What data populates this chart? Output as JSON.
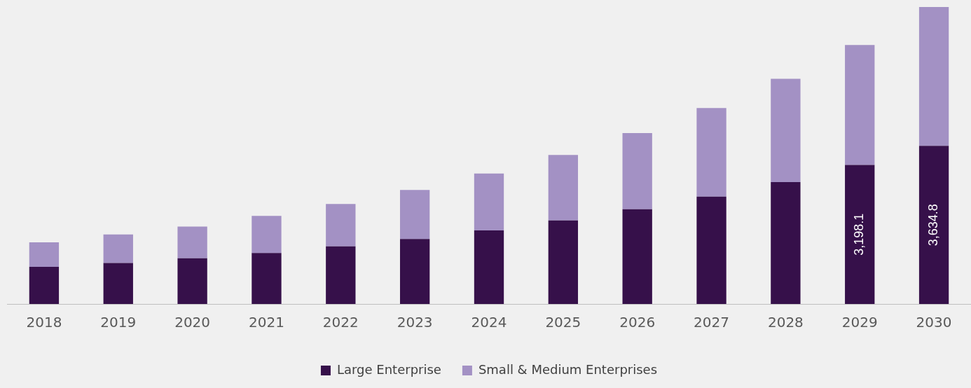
{
  "chart_data": {
    "type": "bar",
    "stacked": true,
    "legend": "bottom",
    "grid": false,
    "categories": [
      "2018",
      "2019",
      "2020",
      "2021",
      "2022",
      "2023",
      "2024",
      "2025",
      "2026",
      "2027",
      "2028",
      "2029",
      "2030"
    ],
    "ylim": [
      0,
      6830
    ],
    "series": [
      {
        "name": "Large Enterprise",
        "color": "#36104a",
        "values": [
          853,
          944,
          1051,
          1173,
          1325,
          1493,
          1690,
          1919,
          2178,
          2467,
          2802,
          3198.1,
          3634.8
        ],
        "value_labels": [
          null,
          null,
          null,
          null,
          null,
          null,
          null,
          null,
          null,
          null,
          null,
          "3,198.1",
          "3,634.8"
        ]
      },
      {
        "name": "Small & Medium Enterprises",
        "color": "#a391c4",
        "values": [
          564,
          655,
          731,
          853,
          975,
          1127,
          1310,
          1508,
          1751,
          2041,
          2376,
          2757,
          3198
        ]
      }
    ]
  }
}
